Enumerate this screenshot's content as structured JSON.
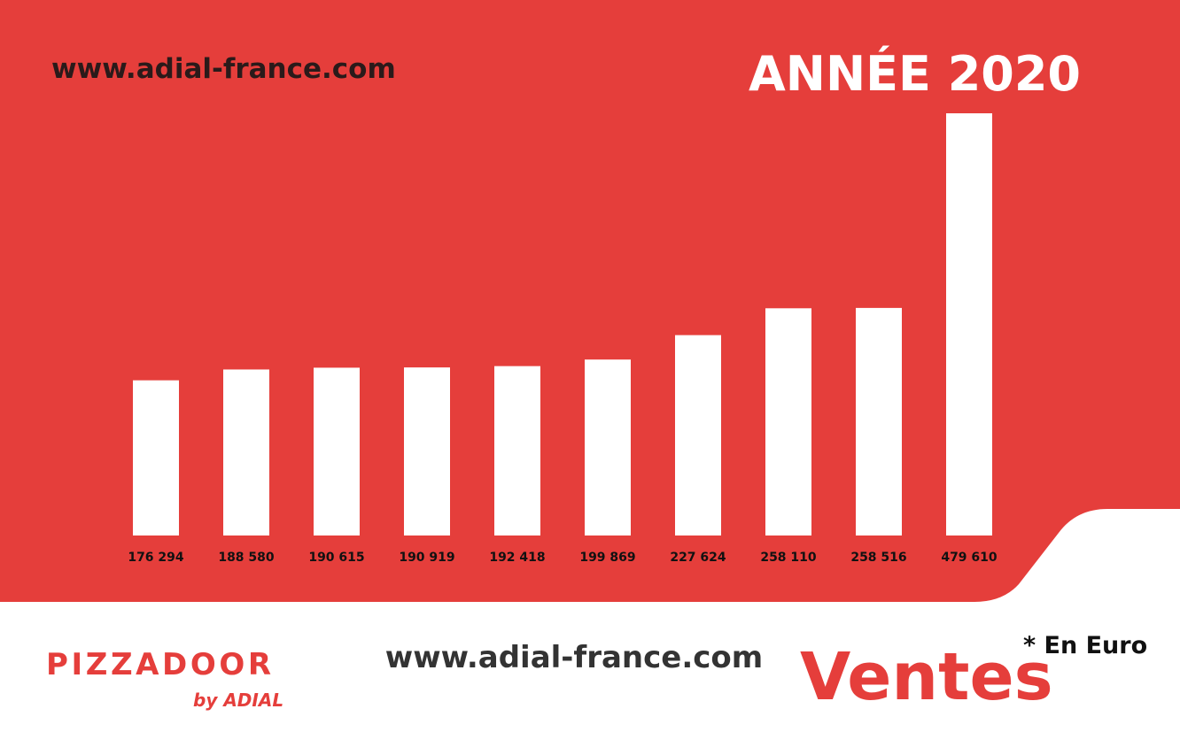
{
  "chart_data": {
    "type": "bar",
    "title": "ANNÉE 2020",
    "values": [
      176294,
      188580,
      190615,
      190919,
      192418,
      199869,
      227624,
      258110,
      258516,
      479610
    ],
    "value_labels": [
      "176 294",
      "188 580",
      "190 615",
      "190 919",
      "192 418",
      "199 869",
      "227 624",
      "258 110",
      "258 516",
      "479 610"
    ],
    "color": "#ffffff"
  },
  "header": {
    "url": "www.adial-france.com"
  },
  "footer": {
    "url": "www.adial-france.com",
    "label": "Ventes",
    "note": "* En Euro",
    "logo": {
      "brand": "PIZZADOOR",
      "tagline": "by ADIAL"
    }
  }
}
